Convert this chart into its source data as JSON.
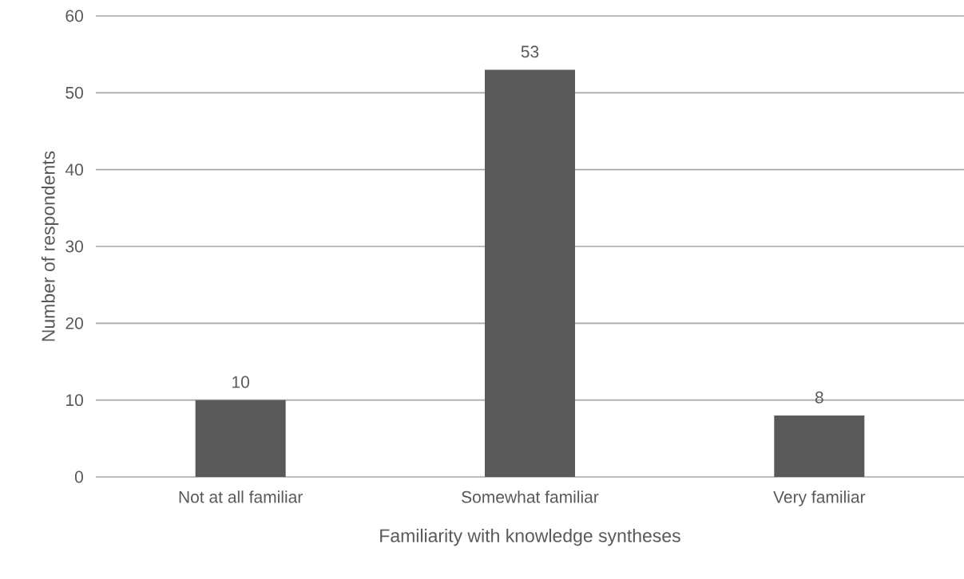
{
  "chart_data": {
    "type": "bar",
    "xlabel": "Familiarity with knowledge syntheses",
    "ylabel": "Number of respondents",
    "categories": [
      "Not at all familiar",
      "Somewhat familiar",
      "Very familiar"
    ],
    "values": [
      10,
      53,
      8
    ],
    "color": "#595959",
    "ylim": [
      0,
      60
    ],
    "yticks": [
      0,
      10,
      20,
      30,
      40,
      50,
      60
    ],
    "grid": "y",
    "data_labels": true
  }
}
